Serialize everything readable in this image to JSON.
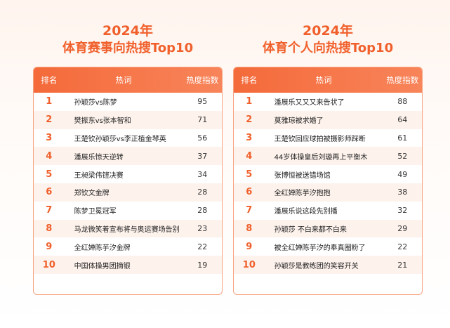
{
  "left": {
    "year": "2024年",
    "title": "体育赛事向热搜Top10",
    "headers": {
      "rank": "排名",
      "term": "热词",
      "score": "热度指数"
    },
    "rows": [
      {
        "rank": "1",
        "term": "孙颖莎vs陈梦",
        "score": "95"
      },
      {
        "rank": "2",
        "term": "樊振东vs张本智和",
        "score": "71"
      },
      {
        "rank": "3",
        "term": "王楚钦孙颖莎vs李正植金琴英",
        "score": "56"
      },
      {
        "rank": "4",
        "term": "潘展乐惊天逆转",
        "score": "37"
      },
      {
        "rank": "5",
        "term": "王昶梁伟铿决赛",
        "score": "34"
      },
      {
        "rank": "6",
        "term": "郑钦文金牌",
        "score": "28"
      },
      {
        "rank": "7",
        "term": "陈梦卫冕冠军",
        "score": "28"
      },
      {
        "rank": "8",
        "term": "马龙微笑着宣布将与奥运赛场告别",
        "score": "23"
      },
      {
        "rank": "9",
        "term": "全红婵陈芋汐金牌",
        "score": "22"
      },
      {
        "rank": "10",
        "term": "中国体操男团摘银",
        "score": "19"
      }
    ]
  },
  "right": {
    "year": "2024年",
    "title": "体育个人向热搜Top10",
    "headers": {
      "rank": "排名",
      "term": "热词",
      "score": "热度指数"
    },
    "rows": [
      {
        "rank": "1",
        "term": "潘展乐又又又来告状了",
        "score": "88"
      },
      {
        "rank": "2",
        "term": "莫雅琼被求婚了",
        "score": "64"
      },
      {
        "rank": "3",
        "term": "王楚钦回应球拍被摄影师踩断",
        "score": "61"
      },
      {
        "rank": "4",
        "term": "44岁体操皇后刘璇再上平衡木",
        "score": "52"
      },
      {
        "rank": "5",
        "term": "张博恒被送错场馆",
        "score": "49"
      },
      {
        "rank": "6",
        "term": "全红婵陈芋汐抱抱",
        "score": "38"
      },
      {
        "rank": "7",
        "term": "潘展乐说这段先别播",
        "score": "32"
      },
      {
        "rank": "8",
        "term": "孙颖莎 不白来都不白来",
        "score": "29"
      },
      {
        "rank": "9",
        "term": "被全红婵陈芋汐的奉真圈粉了",
        "score": "22"
      },
      {
        "rank": "10",
        "term": "孙颖莎是教练团的笑容开关",
        "score": "21"
      }
    ]
  }
}
